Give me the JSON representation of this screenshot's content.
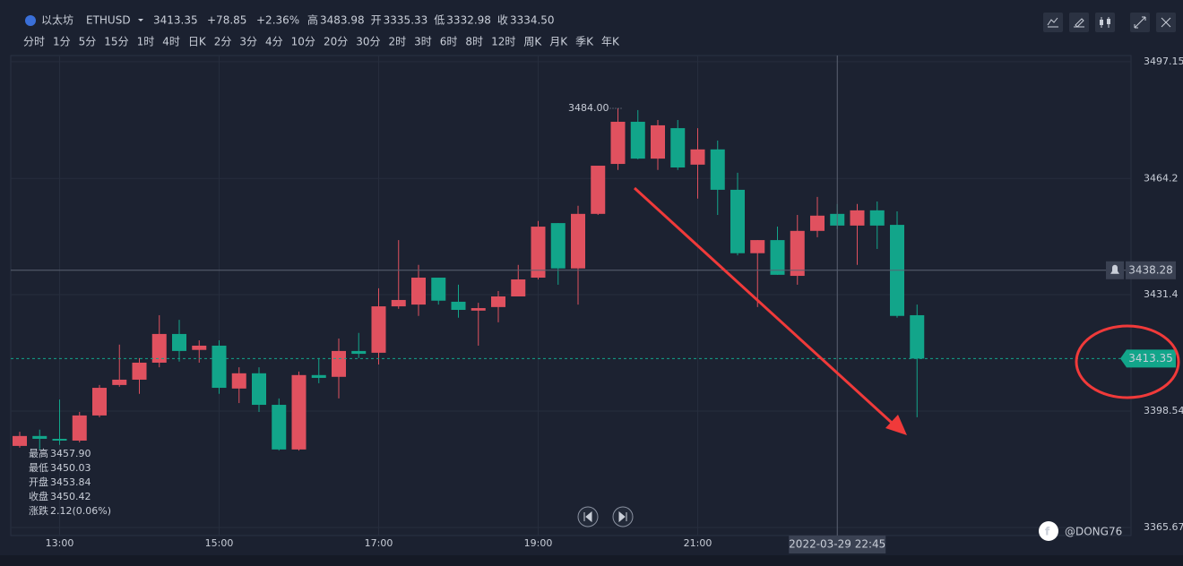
{
  "header": {
    "name": "以太坊",
    "symbol": "ETHUSD",
    "price": "3413.35",
    "change": "+78.85",
    "change_pct": "+2.36%",
    "stats": [
      {
        "label": "高",
        "value": "3483.98"
      },
      {
        "label": "开",
        "value": "3335.33"
      },
      {
        "label": "低",
        "value": "3332.98"
      },
      {
        "label": "收",
        "value": "3334.50"
      }
    ]
  },
  "timeframes": [
    "分时",
    "1分",
    "5分",
    "15分",
    "1时",
    "4时",
    "日K",
    "2分",
    "3分",
    "4分",
    "10分",
    "20分",
    "30分",
    "2时",
    "3时",
    "6时",
    "8时",
    "12时",
    "周K",
    "月K",
    "季K",
    "年K"
  ],
  "active_timeframe": "15分",
  "info_panel": [
    {
      "label": "最高",
      "value": "3457.90"
    },
    {
      "label": "最低",
      "value": "3450.03"
    },
    {
      "label": "开盘",
      "value": "3453.84"
    },
    {
      "label": "收盘",
      "value": "3450.42"
    },
    {
      "label": "涨跌",
      "value": "2.12(0.06%)"
    }
  ],
  "watermark": "@DONG76",
  "chart_data": {
    "type": "candlestick",
    "categories": [
      null,
      null,
      "13:00",
      null,
      null,
      null,
      null,
      null,
      null,
      null,
      "15:00",
      null,
      null,
      null,
      null,
      null,
      null,
      null,
      "17:00",
      null,
      null,
      null,
      null,
      null,
      null,
      null,
      "19:00",
      null,
      null,
      null,
      null,
      null,
      null,
      null,
      "21:00",
      null,
      null,
      null,
      null,
      null,
      null,
      null,
      null,
      null,
      null,
      null
    ],
    "open": [
      3388.7,
      3391.5,
      3390.7,
      3390.2,
      3397.3,
      3405.9,
      3407.4,
      3412.2,
      3420.3,
      3415.8,
      3417.0,
      3404.9,
      3409.2,
      3400.3,
      3387.7,
      3408.7,
      3408.2,
      3415.5,
      3415.0,
      3428.1,
      3428.6,
      3436.2,
      3429.4,
      3426.9,
      3427.9,
      3430.9,
      3436.2,
      3451.6,
      3438.8,
      3454.2,
      3468.3,
      3480.2,
      3469.8,
      3478.4,
      3468.1,
      3472.4,
      3461.0,
      3443.1,
      3446.8,
      3436.7,
      3449.4,
      3454.2,
      3450.9,
      3455.2,
      3451.1,
      3425.6
    ],
    "high": [
      3392.7,
      3393.3,
      3401.8,
      3398.3,
      3405.9,
      3417.3,
      3413.5,
      3425.6,
      3424.3,
      3418.5,
      3418.5,
      3410.9,
      3410.9,
      3402.1,
      3409.7,
      3413.5,
      3419.0,
      3420.6,
      3433.2,
      3446.8,
      3439.8,
      3436.2,
      3434.2,
      3429.1,
      3432.4,
      3439.8,
      3452.2,
      3451.6,
      3456.5,
      3467.8,
      3484.0,
      3483.5,
      3480.7,
      3480.7,
      3478.4,
      3474.9,
      3465.8,
      3446.8,
      3450.6,
      3453.9,
      3459.0,
      3457.0,
      3457.0,
      3457.7,
      3454.9,
      3428.6
    ],
    "low": [
      3388.2,
      3387.7,
      3389.0,
      3389.7,
      3396.8,
      3405.4,
      3403.4,
      3410.9,
      3412.5,
      3412.2,
      3403.4,
      3400.8,
      3398.3,
      3387.4,
      3387.4,
      3406.4,
      3402.1,
      3413.5,
      3411.7,
      3427.4,
      3425.4,
      3428.6,
      3424.9,
      3417.0,
      3423.6,
      3430.9,
      3435.7,
      3434.2,
      3428.6,
      3453.9,
      3466.6,
      3469.6,
      3466.6,
      3466.6,
      3458.5,
      3453.9,
      3442.5,
      3427.9,
      3437.0,
      3434.2,
      3447.6,
      3449.9,
      3439.8,
      3444.3,
      3424.9,
      3396.8
    ],
    "close": [
      3391.5,
      3390.7,
      3390.2,
      3397.3,
      3405.1,
      3407.4,
      3412.2,
      3420.3,
      3415.5,
      3417.0,
      3405.1,
      3409.2,
      3400.3,
      3387.7,
      3408.7,
      3407.9,
      3415.5,
      3414.7,
      3428.1,
      3429.9,
      3436.2,
      3429.7,
      3427.1,
      3427.6,
      3430.9,
      3435.7,
      3450.6,
      3438.8,
      3454.2,
      3467.8,
      3480.2,
      3469.8,
      3479.2,
      3467.3,
      3472.4,
      3461.0,
      3443.1,
      3446.8,
      3437.0,
      3449.4,
      3453.7,
      3450.9,
      3455.2,
      3450.9,
      3425.4,
      3413.35
    ],
    "up_color": "#e0515f",
    "down_color": "#12a58a",
    "ylim": [
      3363.4,
      3498.9
    ],
    "yticks": [
      3497.15,
      3464.2,
      3431.4,
      3398.54,
      3365.67
    ],
    "grid": true,
    "high_label": "3484.00",
    "high_index": 30,
    "crosshair_price": 3438.28,
    "crosshair_index": 41,
    "crosshair_time": "2022-03-29 22:45",
    "last_price": 3413.35
  }
}
